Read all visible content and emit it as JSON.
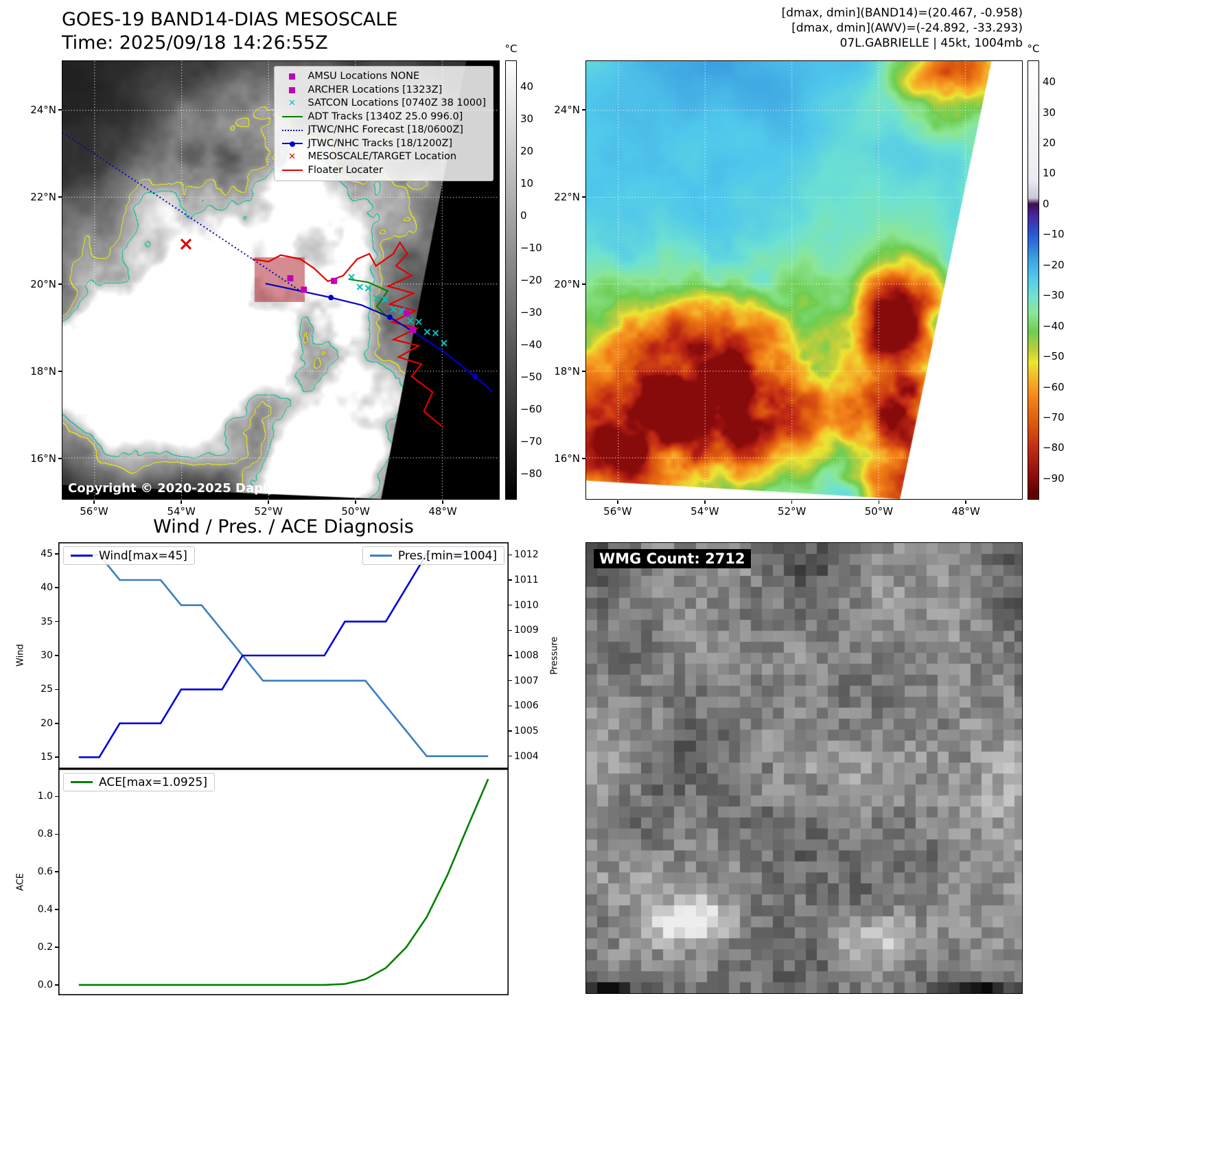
{
  "panel_band14": {
    "title_line1": "GOES-19 BAND14-DIAS MESOSCALE",
    "title_line2": "Time: 2025/09/18 14:26:55Z",
    "copyright": "Copyright © 2020-2025 Dapiya",
    "lat_ticks": [
      "24°N",
      "22°N",
      "20°N",
      "18°N",
      "16°N"
    ],
    "lon_ticks": [
      "56°W",
      "54°W",
      "52°W",
      "50°W",
      "48°W"
    ],
    "colorbar": {
      "unit": "°C",
      "vmax": 48,
      "vmin": -88,
      "ticks": [
        {
          "v": 40,
          "label": "40"
        },
        {
          "v": 30,
          "label": "30"
        },
        {
          "v": 20,
          "label": "20"
        },
        {
          "v": 10,
          "label": "10"
        },
        {
          "v": 0,
          "label": "0"
        },
        {
          "v": -10,
          "label": "−10"
        },
        {
          "v": -20,
          "label": "−20"
        },
        {
          "v": -30,
          "label": "−30"
        },
        {
          "v": -40,
          "label": "−40"
        },
        {
          "v": -50,
          "label": "−50"
        },
        {
          "v": -60,
          "label": "−60"
        },
        {
          "v": -70,
          "label": "−70"
        },
        {
          "v": -80,
          "label": "−80"
        }
      ]
    },
    "legend": [
      {
        "marker": "square",
        "color": "#bf00bf",
        "label": "AMSU Locations NONE"
      },
      {
        "marker": "square",
        "color": "#bf00bf",
        "label": "ARCHER Locations [1323Z]"
      },
      {
        "marker": "x",
        "color": "#00bfbf",
        "label": "SATCON Locations [0740Z 38 1000]"
      },
      {
        "marker": "line",
        "color": "#008000",
        "label": "ADT Tracks [1340Z 25.0 996.0]"
      },
      {
        "marker": "dotted-line",
        "color": "#0000cc",
        "label": "JTWC/NHC Forecast [18/0600Z]"
      },
      {
        "marker": "line-dot",
        "color": "#0000cc",
        "label": "JTWC/NHC Tracks [18/1200Z]"
      },
      {
        "marker": "x",
        "color": "#e00000",
        "label": "MESOSCALE/TARGET Location"
      },
      {
        "marker": "line",
        "color": "#e00000",
        "label": "Floater Locater"
      }
    ]
  },
  "panel_awv": {
    "header_line1": "[dmax, dmin](BAND14)=(20.467, -0.958)",
    "header_line2": "[dmax, dmin](AWV)=(-24.892, -33.293)",
    "header_line3": "07L.GABRIELLE | 45kt, 1004mb",
    "lat_ticks": [
      "24°N",
      "22°N",
      "20°N",
      "18°N",
      "16°N"
    ],
    "lon_ticks": [
      "56°W",
      "54°W",
      "52°W",
      "50°W",
      "48°W"
    ],
    "colorbar": {
      "unit": "°C",
      "vmax": 47,
      "vmin": -97,
      "ticks": [
        {
          "v": 40,
          "label": "40"
        },
        {
          "v": 30,
          "label": "30"
        },
        {
          "v": 20,
          "label": "20"
        },
        {
          "v": 10,
          "label": "10"
        },
        {
          "v": 0,
          "label": "0"
        },
        {
          "v": -10,
          "label": "−10"
        },
        {
          "v": -20,
          "label": "−20"
        },
        {
          "v": -30,
          "label": "−30"
        },
        {
          "v": -40,
          "label": "−40"
        },
        {
          "v": -50,
          "label": "−50"
        },
        {
          "v": -60,
          "label": "−60"
        },
        {
          "v": -70,
          "label": "−70"
        },
        {
          "v": -80,
          "label": "−80"
        },
        {
          "v": -90,
          "label": "−90"
        }
      ],
      "stops": [
        {
          "t": 45,
          "c": "#ffffff"
        },
        {
          "t": 8,
          "c": "#ebebf2"
        },
        {
          "t": 2,
          "c": "#c8c8d7"
        },
        {
          "t": 0,
          "c": "#3c1050"
        },
        {
          "t": -4,
          "c": "#4628a0"
        },
        {
          "t": -10,
          "c": "#2858d2"
        },
        {
          "t": -18,
          "c": "#3ca0e1"
        },
        {
          "t": -24,
          "c": "#50c8eb"
        },
        {
          "t": -30,
          "c": "#6ee1d2"
        },
        {
          "t": -36,
          "c": "#8ce696"
        },
        {
          "t": -42,
          "c": "#6ecd50"
        },
        {
          "t": -48,
          "c": "#becd3c"
        },
        {
          "t": -52,
          "c": "#ebe632"
        },
        {
          "t": -58,
          "c": "#f5af28"
        },
        {
          "t": -64,
          "c": "#f28219"
        },
        {
          "t": -72,
          "c": "#dc5a0f"
        },
        {
          "t": -80,
          "c": "#c32d14"
        },
        {
          "t": -88,
          "c": "#96100f"
        },
        {
          "t": -95,
          "c": "#640000"
        }
      ]
    }
  },
  "diagnosis": {
    "title": "Wind / Pres. / ACE Diagnosis"
  },
  "wmg": {
    "label": "WMG Count: 2712"
  },
  "chart_data": [
    {
      "type": "line",
      "title": "Wind / Pres. / ACE Diagnosis",
      "x": [
        0,
        1,
        2,
        3,
        4,
        5,
        6,
        7,
        8,
        9,
        10,
        11,
        12,
        13,
        14,
        15,
        16,
        17,
        18,
        19,
        20
      ],
      "xlim": [
        -1,
        21
      ],
      "series": [
        {
          "name": "Wind[max=45]",
          "yaxis": "left",
          "color": "#0202dd",
          "values": [
            15,
            15,
            20,
            20,
            20,
            25,
            25,
            25,
            30,
            30,
            30,
            30,
            30,
            35,
            35,
            35,
            40,
            45,
            45,
            45,
            45
          ]
        },
        {
          "name": "Pres.[min=1004]",
          "yaxis": "right",
          "color": "#3a7ebf",
          "values": [
            1012,
            1012,
            1011,
            1011,
            1011,
            1010,
            1010,
            1009,
            1008,
            1007,
            1007,
            1007,
            1007,
            1007,
            1007,
            1006,
            1005,
            1004,
            1004,
            1004,
            1004
          ]
        }
      ],
      "ylabel_left": "Wind",
      "ylabel_right": "Pressure",
      "ylim_left": [
        13.3,
        46.7
      ],
      "ylim_right": [
        1003.5,
        1012.5
      ],
      "yticks_left": [
        {
          "v": 15,
          "label": "15"
        },
        {
          "v": 20,
          "label": "20"
        },
        {
          "v": 25,
          "label": "25"
        },
        {
          "v": 30,
          "label": "30"
        },
        {
          "v": 35,
          "label": "35"
        },
        {
          "v": 40,
          "label": "40"
        },
        {
          "v": 45,
          "label": "45"
        }
      ],
      "yticks_right": [
        {
          "v": 1004,
          "label": "1004"
        },
        {
          "v": 1005,
          "label": "1005"
        },
        {
          "v": 1006,
          "label": "1006"
        },
        {
          "v": 1007,
          "label": "1007"
        },
        {
          "v": 1008,
          "label": "1008"
        },
        {
          "v": 1009,
          "label": "1009"
        },
        {
          "v": 1010,
          "label": "1010"
        },
        {
          "v": 1011,
          "label": "1011"
        },
        {
          "v": 1012,
          "label": "1012"
        }
      ],
      "legend_position": "upper-left and upper-right"
    },
    {
      "type": "line",
      "x": [
        0,
        1,
        2,
        3,
        4,
        5,
        6,
        7,
        8,
        9,
        10,
        11,
        12,
        13,
        14,
        15,
        16,
        17,
        18,
        19,
        20
      ],
      "xlim": [
        -1,
        21
      ],
      "series": [
        {
          "name": "ACE[max=1.0925]",
          "color": "#008000",
          "values": [
            0,
            0,
            0,
            0,
            0,
            0,
            0,
            0,
            0,
            0,
            0,
            0,
            0,
            0.005,
            0.03,
            0.09,
            0.2,
            0.36,
            0.58,
            0.84,
            1.0925
          ]
        }
      ],
      "ylabel": "ACE",
      "ylim": [
        -0.055,
        1.147
      ],
      "yticks": [
        {
          "v": 0,
          "label": "0.0"
        },
        {
          "v": 0.2,
          "label": "0.2"
        },
        {
          "v": 0.4,
          "label": "0.4"
        },
        {
          "v": 0.6,
          "label": "0.6"
        },
        {
          "v": 0.8,
          "label": "0.8"
        },
        {
          "v": 1,
          "label": "1.0"
        }
      ],
      "legend_position": "upper-left"
    }
  ]
}
